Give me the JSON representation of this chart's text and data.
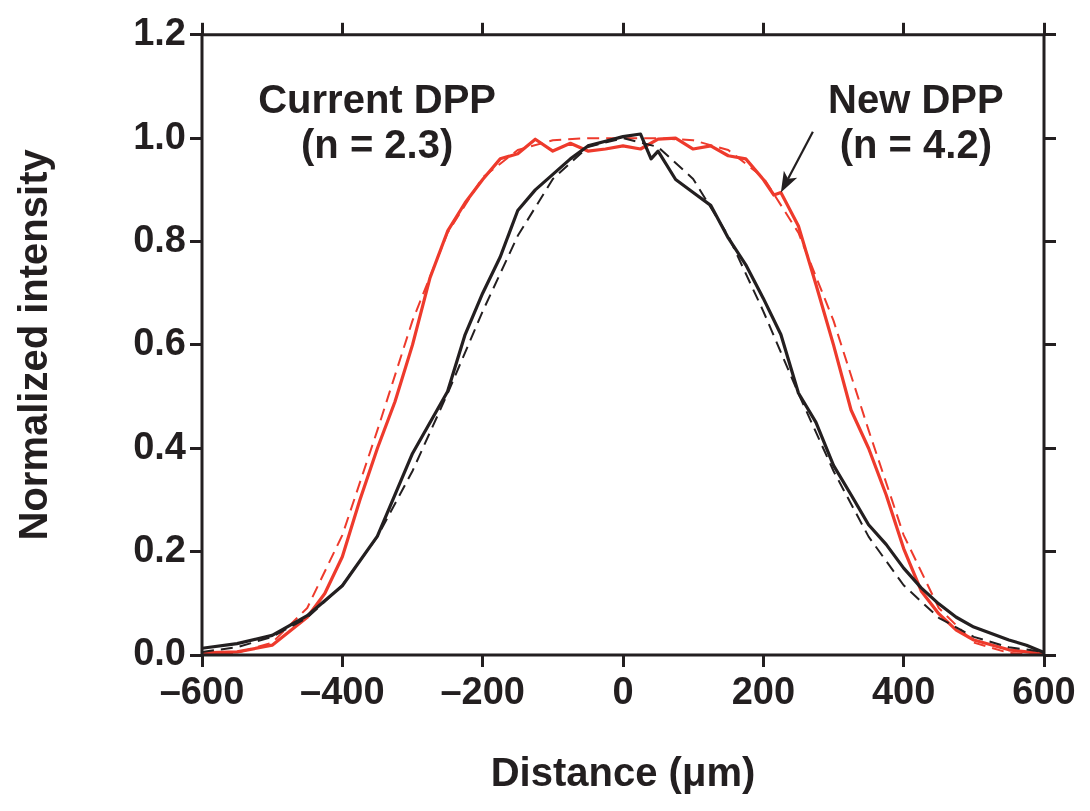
{
  "chart_data": {
    "type": "line",
    "xlabel": "Distance (μm)",
    "ylabel": "Normalized intensity",
    "xlim": [
      -600,
      600
    ],
    "ylim": [
      0,
      1.2
    ],
    "xticks": [
      {
        "value": -600,
        "label": "–600"
      },
      {
        "value": -400,
        "label": "–400"
      },
      {
        "value": -200,
        "label": "–200"
      },
      0,
      200,
      400,
      600
    ],
    "yticks": [
      {
        "value": 0,
        "label": "0.0"
      },
      0.2,
      0.4,
      0.6,
      0.8,
      {
        "value": 1,
        "label": "1.0"
      },
      1.2
    ],
    "legend": false,
    "marker": "none",
    "series": [
      {
        "color": "#231f20",
        "line_style": "solid",
        "x": [
          -600,
          -550,
          -500,
          -450,
          -400,
          -350,
          -300,
          -250,
          -225,
          -200,
          -175,
          -150,
          -125,
          -100,
          -75,
          -50,
          -25,
          0,
          25,
          40,
          50,
          75,
          100,
          125,
          150,
          175,
          200,
          225,
          250,
          275,
          300,
          325,
          350,
          375,
          400,
          425,
          450,
          475,
          500,
          550,
          575,
          600
        ],
        "values": [
          0.013,
          0.022,
          0.038,
          0.076,
          0.134,
          0.23,
          0.39,
          0.51,
          0.62,
          0.7,
          0.77,
          0.86,
          0.9,
          0.93,
          0.96,
          0.985,
          0.994,
          1.003,
          1.008,
          0.96,
          0.975,
          0.92,
          0.895,
          0.87,
          0.807,
          0.755,
          0.69,
          0.62,
          0.507,
          0.45,
          0.367,
          0.31,
          0.252,
          0.214,
          0.168,
          0.13,
          0.099,
          0.073,
          0.054,
          0.029,
          0.019,
          0.005
        ]
      },
      {
        "color": "#231f20",
        "line_style": "dashed",
        "x": [
          -600,
          -550,
          -500,
          -450,
          -400,
          -350,
          -300,
          -250,
          -200,
          -150,
          -100,
          -50,
          0,
          50,
          100,
          150,
          200,
          250,
          300,
          350,
          400,
          450,
          500,
          550,
          600
        ],
        "values": [
          0.006,
          0.015,
          0.035,
          0.072,
          0.135,
          0.229,
          0.356,
          0.506,
          0.665,
          0.811,
          0.921,
          0.983,
          1,
          0.983,
          0.921,
          0.811,
          0.665,
          0.506,
          0.356,
          0.229,
          0.135,
          0.072,
          0.035,
          0.015,
          0.006
        ]
      },
      {
        "color": "#ee3a2c",
        "line_style": "solid",
        "x": [
          -600,
          -550,
          -500,
          -450,
          -425,
          -400,
          -375,
          -350,
          -325,
          -300,
          -275,
          -250,
          -225,
          -200,
          -175,
          -150,
          -125,
          -100,
          -75,
          -50,
          -25,
          0,
          25,
          50,
          75,
          100,
          125,
          150,
          175,
          200,
          215,
          225,
          250,
          275,
          300,
          325,
          350,
          375,
          400,
          425,
          450,
          475,
          500,
          550,
          600
        ],
        "values": [
          0.004,
          0.006,
          0.019,
          0.073,
          0.119,
          0.19,
          0.3,
          0.4,
          0.49,
          0.6,
          0.73,
          0.82,
          0.875,
          0.92,
          0.96,
          0.97,
          0.998,
          0.975,
          0.99,
          0.975,
          0.979,
          0.985,
          0.979,
          0.998,
          1.0,
          0.979,
          0.985,
          0.966,
          0.96,
          0.92,
          0.89,
          0.895,
          0.83,
          0.717,
          0.6,
          0.474,
          0.4,
          0.31,
          0.206,
          0.124,
          0.08,
          0.048,
          0.029,
          0.01,
          0.002
        ]
      },
      {
        "color": "#ee3a2c",
        "line_style": "dashed",
        "x": [
          -600,
          -550,
          -500,
          -450,
          -400,
          -350,
          -300,
          -250,
          -200,
          -150,
          -100,
          -50,
          0,
          50,
          100,
          150,
          200,
          250,
          300,
          350,
          400,
          450,
          500,
          550,
          600
        ],
        "values": [
          0,
          0.004,
          0.024,
          0.091,
          0.232,
          0.435,
          0.647,
          0.817,
          0.924,
          0.977,
          0.996,
          1.0,
          1,
          1.0,
          0.996,
          0.977,
          0.924,
          0.817,
          0.647,
          0.435,
          0.232,
          0.091,
          0.024,
          0.004,
          0
        ]
      }
    ],
    "annotations": [
      "Current DPP\n(n = 2.3)",
      {
        "text": "New DPP\n(n = 4.2)",
        "x": 225,
        "y": 0.895
      }
    ]
  }
}
